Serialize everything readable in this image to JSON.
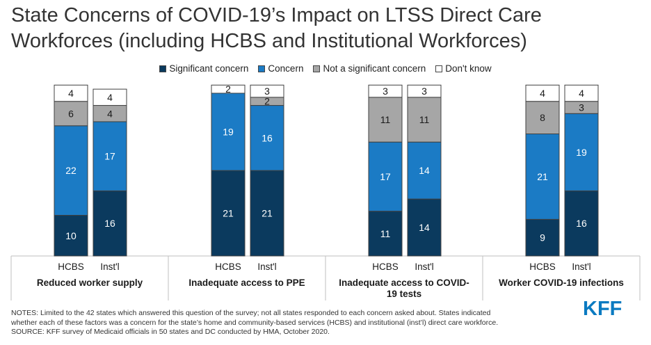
{
  "title": "State Concerns of COVID-19’s Impact on LTSS Direct Care Workforces (including HCBS and Institutional Workforces)",
  "legend": [
    {
      "label": "Significant concern",
      "color": "#0b3a5e"
    },
    {
      "label": "Concern",
      "color": "#1b7bc5"
    },
    {
      "label": "Not a significant concern",
      "color": "#a6a6a6"
    },
    {
      "label": "Don't know",
      "color": "#ffffff"
    }
  ],
  "chart_data": {
    "type": "bar",
    "stacked": true,
    "groups": [
      {
        "label": "Reduced worker supply",
        "bars": [
          {
            "label": "HCBS",
            "values": [
              10,
              22,
              6,
              4
            ]
          },
          {
            "label": "Inst'l",
            "values": [
              16,
              17,
              4,
              4
            ]
          }
        ]
      },
      {
        "label": "Inadequate access to PPE",
        "bars": [
          {
            "label": "HCBS",
            "values": [
              21,
              19,
              0,
              2
            ]
          },
          {
            "label": "Inst'l",
            "values": [
              21,
              16,
              2,
              3
            ]
          }
        ]
      },
      {
        "label": "Inadequate access to COVID-19 tests",
        "bars": [
          {
            "label": "HCBS",
            "values": [
              11,
              17,
              11,
              3
            ]
          },
          {
            "label": "Inst'l",
            "values": [
              14,
              14,
              11,
              3
            ]
          }
        ]
      },
      {
        "label": "Worker COVID-19 infections",
        "bars": [
          {
            "label": "HCBS",
            "values": [
              9,
              21,
              8,
              4
            ]
          },
          {
            "label": "Inst'l",
            "values": [
              16,
              19,
              3,
              4
            ]
          }
        ]
      }
    ],
    "series": [
      {
        "name": "Significant concern",
        "color": "#0b3a5e",
        "label_color": "#ffffff"
      },
      {
        "name": "Concern",
        "color": "#1b7bc5",
        "label_color": "#ffffff"
      },
      {
        "name": "Not a significant concern",
        "color": "#a6a6a6",
        "label_color": "#1a1a1a"
      },
      {
        "name": "Don't know",
        "color": "#ffffff",
        "label_color": "#1a1a1a"
      }
    ],
    "legend_position": "top",
    "grid": false
  },
  "notes": [
    "NOTES: Limited to the 42 states which answered this question of the survey; not all states responded to each concern asked about. States indicated",
    "whether each of these factors was a concern for the state’s home and community-based services (HCBS) and institutional (inst’l) direct care workforce.",
    "SOURCE: KFF survey of Medicaid officials in 50 states and DC conducted by HMA, October 2020."
  ],
  "logo": "KFF"
}
